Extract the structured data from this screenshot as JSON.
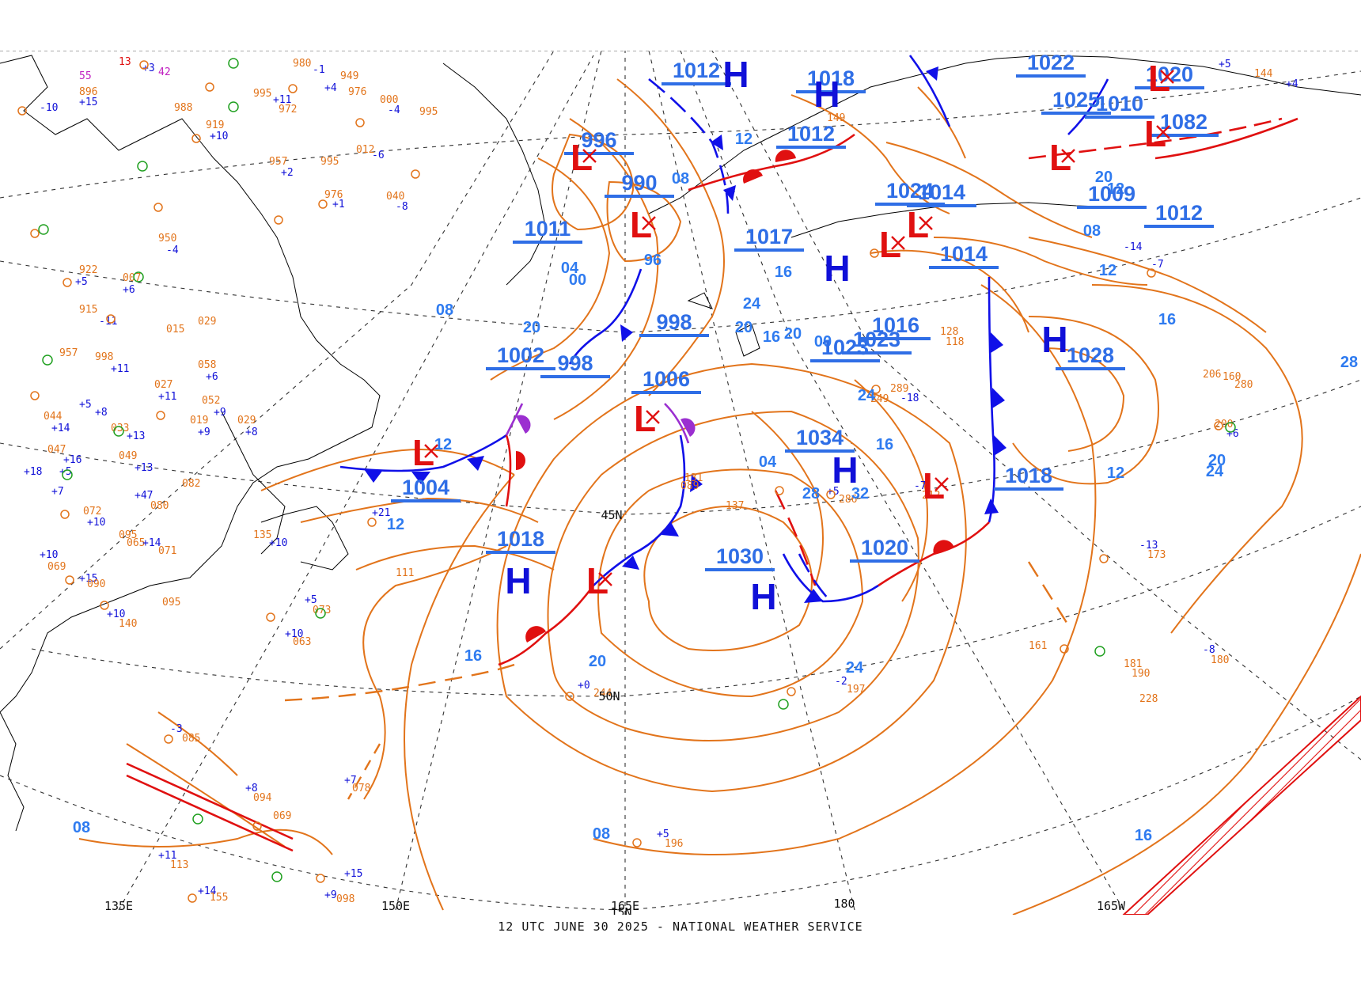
{
  "map": {
    "caption": "12 UTC JUNE 30 2025 - NATIONAL WEATHER SERVICE",
    "colors": {
      "isobar": "#e2741b",
      "isobar_label": "#2f7bf0",
      "high": "#1010d8",
      "low": "#e01010",
      "cold_front": "#1010e8",
      "warm_front": "#e01010",
      "occluded": "#9b2fd0",
      "coast": "#000000",
      "grid": "#333333",
      "ice_hatch": "#e01010"
    },
    "grid_labels": [
      "135E",
      "150E",
      "165E",
      "180",
      "165W",
      "45N",
      "50N",
      "15N"
    ],
    "isobar_labels": [
      "08",
      "12",
      "16",
      "20",
      "24",
      "28",
      "32",
      "04",
      "00",
      "96",
      "08",
      "12",
      "16",
      "20",
      "24",
      "16",
      "12",
      "08",
      "20",
      "16",
      "12",
      "28",
      "24",
      "20",
      "16",
      "12",
      "08",
      "20",
      "24",
      "20",
      "16",
      "12",
      "08",
      "04",
      "00",
      "04"
    ],
    "pressure_labels": [
      "1012",
      "1018",
      "1022",
      "1020",
      "1012",
      "996",
      "990",
      "1011",
      "998",
      "1002",
      "998",
      "1006",
      "1004",
      "1018",
      "1017",
      "1023",
      "1024",
      "1014",
      "1016",
      "1023",
      "1034",
      "1030",
      "1014",
      "1020",
      "1018",
      "1028",
      "1010",
      "1009",
      "1012",
      "1025",
      "1082"
    ],
    "highs": [
      "H",
      "H",
      "H",
      "H",
      "H",
      "H",
      "H"
    ],
    "lows": [
      "L",
      "L",
      "L",
      "L",
      "L",
      "L",
      "L",
      "L",
      "L",
      "L",
      "L"
    ],
    "stations": [
      {
        "t": "13",
        "c": "#e01010"
      },
      {
        "t": "+3",
        "c": "#1010d8"
      },
      {
        "t": "42",
        "c": "#c020c0"
      },
      {
        "t": "980",
        "c": "#e2741b"
      },
      {
        "t": "-1",
        "c": "#1010d8"
      },
      {
        "t": "55",
        "c": "#c020c0"
      },
      {
        "t": "949",
        "c": "#e2741b"
      },
      {
        "t": "+4",
        "c": "#1010d8"
      },
      {
        "t": "976",
        "c": "#e2741b"
      },
      {
        "t": "995",
        "c": "#e2741b"
      },
      {
        "t": "+11",
        "c": "#1010d8"
      },
      {
        "t": "972",
        "c": "#e2741b"
      },
      {
        "t": "000",
        "c": "#e2741b"
      },
      {
        "t": "-4",
        "c": "#1010d8"
      },
      {
        "t": "995",
        "c": "#e2741b"
      },
      {
        "t": "896",
        "c": "#e2741b"
      },
      {
        "t": "+15",
        "c": "#1010d8"
      },
      {
        "t": "-10",
        "c": "#1010d8"
      },
      {
        "t": "988",
        "c": "#e2741b"
      },
      {
        "t": "919",
        "c": "#e2741b"
      },
      {
        "t": "+10",
        "c": "#1010d8"
      },
      {
        "t": "957",
        "c": "#e2741b"
      },
      {
        "t": "+2",
        "c": "#1010d8"
      },
      {
        "t": "995",
        "c": "#e2741b"
      },
      {
        "t": "012",
        "c": "#e2741b"
      },
      {
        "t": "-6",
        "c": "#1010d8"
      },
      {
        "t": "976",
        "c": "#e2741b"
      },
      {
        "t": "+1",
        "c": "#1010d8"
      },
      {
        "t": "040",
        "c": "#e2741b"
      },
      {
        "t": "-8",
        "c": "#1010d8"
      },
      {
        "t": "950",
        "c": "#e2741b"
      },
      {
        "t": "-4",
        "c": "#1010d8"
      },
      {
        "t": "922",
        "c": "#e2741b"
      },
      {
        "t": "+5",
        "c": "#1010d8"
      },
      {
        "t": "007",
        "c": "#e2741b"
      },
      {
        "t": "+6",
        "c": "#1010d8"
      },
      {
        "t": "915",
        "c": "#e2741b"
      },
      {
        "t": "-11",
        "c": "#1010d8"
      },
      {
        "t": "029",
        "c": "#e2741b"
      },
      {
        "t": "015",
        "c": "#e2741b"
      },
      {
        "t": "957",
        "c": "#e2741b"
      },
      {
        "t": "998",
        "c": "#e2741b"
      },
      {
        "t": "+11",
        "c": "#1010d8"
      },
      {
        "t": "058",
        "c": "#e2741b"
      },
      {
        "t": "+6",
        "c": "#1010d8"
      },
      {
        "t": "027",
        "c": "#e2741b"
      },
      {
        "t": "+11",
        "c": "#1010d8"
      },
      {
        "t": "052",
        "c": "#e2741b"
      },
      {
        "t": "+9",
        "c": "#1010d8"
      },
      {
        "t": "019",
        "c": "#e2741b"
      },
      {
        "t": "+9",
        "c": "#1010d8"
      },
      {
        "t": "029",
        "c": "#e2741b"
      },
      {
        "t": "+8",
        "c": "#1010d8"
      },
      {
        "t": "+5",
        "c": "#1010d8"
      },
      {
        "t": "+8",
        "c": "#1010d8"
      },
      {
        "t": "044",
        "c": "#e2741b"
      },
      {
        "t": "+14",
        "c": "#1010d8"
      },
      {
        "t": "033",
        "c": "#e2741b"
      },
      {
        "t": "+13",
        "c": "#1010d8"
      },
      {
        "t": "047",
        "c": "#e2741b"
      },
      {
        "t": "+16",
        "c": "#1010d8"
      },
      {
        "t": "049",
        "c": "#e2741b"
      },
      {
        "t": "+13",
        "c": "#1010d8"
      },
      {
        "t": "+18",
        "c": "#1010d8"
      },
      {
        "t": "+5",
        "c": "#1010d8"
      },
      {
        "t": "+7",
        "c": "#1010d8"
      },
      {
        "t": "072",
        "c": "#e2741b"
      },
      {
        "t": "+10",
        "c": "#1010d8"
      },
      {
        "t": "+47",
        "c": "#1010d8"
      },
      {
        "t": "080",
        "c": "#e2741b"
      },
      {
        "t": "095",
        "c": "#e2741b"
      },
      {
        "t": "065",
        "c": "#e2741b"
      },
      {
        "t": "+10",
        "c": "#1010d8"
      },
      {
        "t": "069",
        "c": "#e2741b"
      },
      {
        "t": "+15",
        "c": "#1010d8"
      },
      {
        "t": "090",
        "c": "#e2741b"
      },
      {
        "t": "+14",
        "c": "#1010d8"
      },
      {
        "t": "071",
        "c": "#e2741b"
      },
      {
        "t": "095",
        "c": "#e2741b"
      },
      {
        "t": "+10",
        "c": "#1010d8"
      },
      {
        "t": "140",
        "c": "#e2741b"
      },
      {
        "t": "+5",
        "c": "#1010d8"
      },
      {
        "t": "073",
        "c": "#e2741b"
      },
      {
        "t": "+10",
        "c": "#1010d8"
      },
      {
        "t": "063",
        "c": "#e2741b"
      },
      {
        "t": "-3",
        "c": "#1010d8"
      },
      {
        "t": "085",
        "c": "#e2741b"
      },
      {
        "t": "+7",
        "c": "#1010d8"
      },
      {
        "t": "078",
        "c": "#e2741b"
      },
      {
        "t": "+8",
        "c": "#1010d8"
      },
      {
        "t": "094",
        "c": "#e2741b"
      },
      {
        "t": "069",
        "c": "#e2741b"
      },
      {
        "t": "+11",
        "c": "#1010d8"
      },
      {
        "t": "113",
        "c": "#e2741b"
      },
      {
        "t": "+15",
        "c": "#1010d8"
      },
      {
        "t": "+9",
        "c": "#1010d8"
      },
      {
        "t": "098",
        "c": "#e2741b"
      },
      {
        "t": "+14",
        "c": "#1010d8"
      },
      {
        "t": "155",
        "c": "#e2741b"
      },
      {
        "t": "+5",
        "c": "#1010d8"
      },
      {
        "t": "196",
        "c": "#e2741b"
      },
      {
        "t": "+0",
        "c": "#1010d8"
      },
      {
        "t": "244",
        "c": "#e2741b"
      },
      {
        "t": "-2",
        "c": "#1010d8"
      },
      {
        "t": "197",
        "c": "#e2741b"
      },
      {
        "t": "-13",
        "c": "#1010d8"
      },
      {
        "t": "173",
        "c": "#e2741b"
      },
      {
        "t": "181",
        "c": "#e2741b"
      },
      {
        "t": "190",
        "c": "#e2741b"
      },
      {
        "t": "161",
        "c": "#e2741b"
      },
      {
        "t": "228",
        "c": "#e2741b"
      },
      {
        "t": "-8",
        "c": "#1010d8"
      },
      {
        "t": "180",
        "c": "#e2741b"
      },
      {
        "t": "200",
        "c": "#e2741b"
      },
      {
        "t": "+6",
        "c": "#1010d8"
      },
      {
        "t": "206",
        "c": "#e2741b"
      },
      {
        "t": "160",
        "c": "#e2741b"
      },
      {
        "t": "280",
        "c": "#e2741b"
      },
      {
        "t": "-7",
        "c": "#1010d8"
      },
      {
        "t": "-14",
        "c": "#1010d8"
      },
      {
        "t": "289",
        "c": "#e2741b"
      },
      {
        "t": "-18",
        "c": "#1010d8"
      },
      {
        "t": "249",
        "c": "#e2741b"
      },
      {
        "t": "+5",
        "c": "#1010d8"
      },
      {
        "t": "286",
        "c": "#e2741b"
      },
      {
        "t": "-7",
        "c": "#1010d8"
      },
      {
        "t": "212",
        "c": "#e2741b"
      },
      {
        "t": "128",
        "c": "#e2741b"
      },
      {
        "t": "118",
        "c": "#e2741b"
      },
      {
        "t": "137",
        "c": "#e2741b"
      },
      {
        "t": "131",
        "c": "#e2741b"
      },
      {
        "t": "089",
        "c": "#e2741b"
      },
      {
        "t": "+21",
        "c": "#1010d8"
      },
      {
        "t": "111",
        "c": "#e2741b"
      },
      {
        "t": "135",
        "c": "#e2741b"
      },
      {
        "t": "+10",
        "c": "#1010d8"
      },
      {
        "t": "082",
        "c": "#e2741b"
      },
      {
        "t": "144",
        "c": "#e2741b"
      },
      {
        "t": "+4",
        "c": "#1010d8"
      },
      {
        "t": "+5",
        "c": "#1010d8"
      },
      {
        "t": "149",
        "c": "#e2741b"
      }
    ]
  }
}
